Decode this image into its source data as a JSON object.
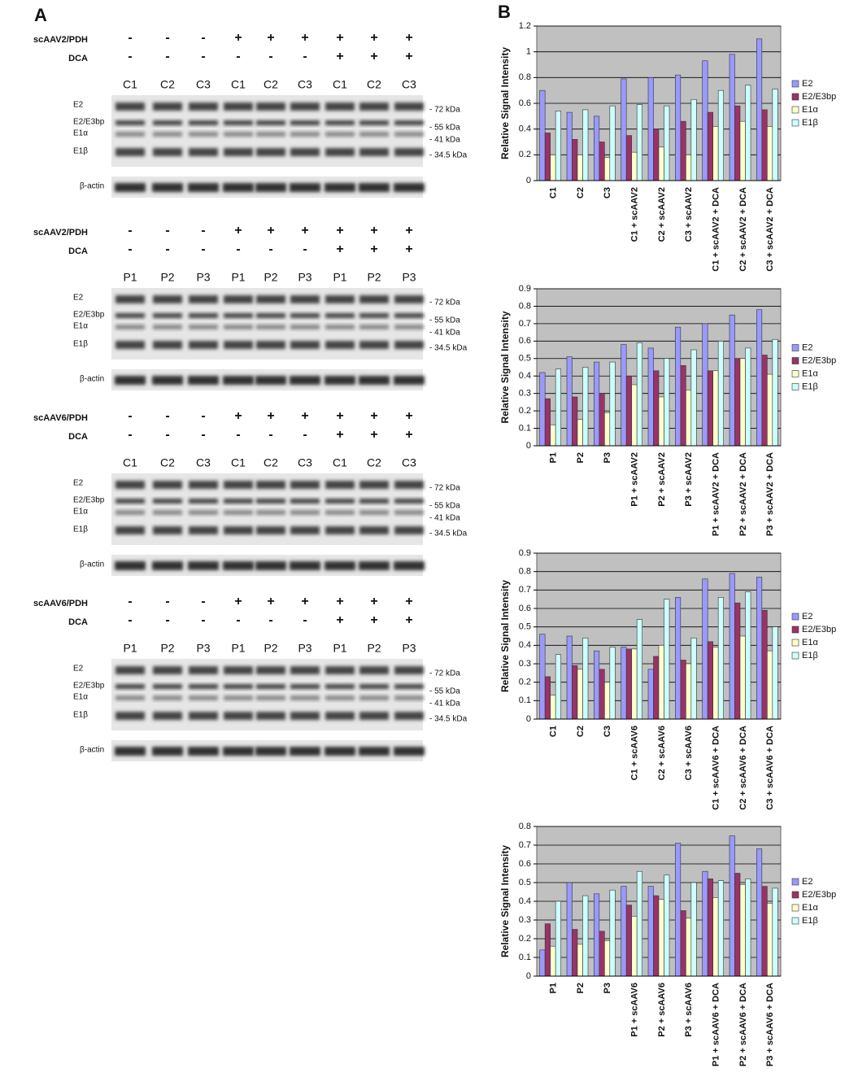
{
  "panel_labels": [
    "A",
    "B"
  ],
  "panel_a": {
    "blots": [
      {
        "treatment": "scAAV2/PDH",
        "treatment_signs": [
          "-",
          "-",
          "-",
          "+",
          "+",
          "+",
          "+",
          "+",
          "+"
        ],
        "dca": "DCA",
        "dca_signs": [
          "-",
          "-",
          "-",
          "-",
          "-",
          "-",
          "+",
          "+",
          "+"
        ],
        "lanes": [
          "C1",
          "C2",
          "C3",
          "C1",
          "C2",
          "C3",
          "C1",
          "C2",
          "C3"
        ],
        "bands": [
          "E2",
          "E2/E3bp",
          "E1α",
          "E1β"
        ],
        "markers": [
          "- 72 kDa",
          "- 55 kDa",
          "- 41 kDa",
          "- 34.5 kDa"
        ],
        "loading": "β-actin"
      },
      {
        "treatment": "scAAV2/PDH",
        "treatment_signs": [
          "-",
          "-",
          "-",
          "+",
          "+",
          "+",
          "+",
          "+",
          "+"
        ],
        "dca": "DCA",
        "dca_signs": [
          "-",
          "-",
          "-",
          "-",
          "-",
          "-",
          "+",
          "+",
          "+"
        ],
        "lanes": [
          "P1",
          "P2",
          "P3",
          "P1",
          "P2",
          "P3",
          "P1",
          "P2",
          "P3"
        ],
        "bands": [
          "E2",
          "E2/E3bp",
          "E1α",
          "E1β"
        ],
        "markers": [
          "- 72 kDa",
          "- 55 kDa",
          "- 41 kDa",
          "- 34.5 kDa"
        ],
        "loading": "β-actin"
      },
      {
        "treatment": "scAAV6/PDH",
        "treatment_signs": [
          "-",
          "-",
          "-",
          "+",
          "+",
          "+",
          "+",
          "+",
          "+"
        ],
        "dca": "DCA",
        "dca_signs": [
          "-",
          "-",
          "-",
          "-",
          "-",
          "-",
          "+",
          "+",
          "+"
        ],
        "lanes": [
          "C1",
          "C2",
          "C3",
          "C1",
          "C2",
          "C3",
          "C1",
          "C2",
          "C3"
        ],
        "bands": [
          "E2",
          "E2/E3bp",
          "E1α",
          "E1β"
        ],
        "markers": [
          "- 72 kDa",
          "- 55 kDa",
          "- 41 kDa",
          "- 34.5 kDa"
        ],
        "loading": "β-actin"
      },
      {
        "treatment": "scAAV6/PDH",
        "treatment_signs": [
          "-",
          "-",
          "-",
          "+",
          "+",
          "+",
          "+",
          "+",
          "+"
        ],
        "dca": "DCA",
        "dca_signs": [
          "-",
          "-",
          "-",
          "-",
          "-",
          "-",
          "+",
          "+",
          "+"
        ],
        "lanes": [
          "P1",
          "P2",
          "P3",
          "P1",
          "P2",
          "P3",
          "P1",
          "P2",
          "P3"
        ],
        "bands": [
          "E2",
          "E2/E3bp",
          "E1α",
          "E1β"
        ],
        "markers": [
          "- 72 kDa",
          "- 55 kDa",
          "- 41 kDa",
          "- 34.5 kDa"
        ],
        "loading": "β-actin"
      }
    ]
  },
  "chart_data": [
    {
      "type": "bar",
      "y_label": "Relative Signal Intensity",
      "plot_background": "#c0c0c0",
      "grid": true,
      "legend": "right",
      "categories": [
        "C1",
        "C2",
        "C3",
        "C1 + scAAV2",
        "C2 + scAAV2",
        "C3 + scAAV2",
        "C1 + scAAV2 + DCA",
        "C2 + scAAV2 + DCA",
        "C3 + scAAV2 + DCA"
      ],
      "ylim": [
        0,
        1.2
      ],
      "yticks": [
        0,
        0.2,
        0.4,
        0.6,
        0.8,
        1,
        1.2
      ],
      "series": [
        {
          "name": "E2",
          "color": "#9999ff",
          "values": [
            0.7,
            0.53,
            0.5,
            0.79,
            0.8,
            0.82,
            0.93,
            0.98,
            1.1
          ]
        },
        {
          "name": "E2/E3bp",
          "color": "#993366",
          "values": [
            0.37,
            0.32,
            0.3,
            0.35,
            0.4,
            0.46,
            0.53,
            0.58,
            0.55
          ]
        },
        {
          "name": "E1α",
          "color": "#ffffcc",
          "values": [
            0.2,
            0.2,
            0.18,
            0.22,
            0.26,
            0.2,
            0.42,
            0.46,
            0.42
          ]
        },
        {
          "name": "E1β",
          "color": "#ccffff",
          "values": [
            0.54,
            0.55,
            0.58,
            0.59,
            0.58,
            0.63,
            0.7,
            0.74,
            0.71
          ]
        }
      ]
    },
    {
      "type": "bar",
      "y_label": "Relative Signal Intensity",
      "plot_background": "#c0c0c0",
      "grid": true,
      "legend": "right",
      "categories": [
        "P1",
        "P2",
        "P3",
        "P1 + scAAV2",
        "P2 + scAAV2",
        "P3 + scAAV2",
        "P1 + scAAV2 + DCA",
        "P2 + scAAV2 + DCA",
        "P3 + scAAV2 + DCA"
      ],
      "ylim": [
        0,
        0.9
      ],
      "yticks": [
        0,
        0.1,
        0.2,
        0.3,
        0.4,
        0.5,
        0.6,
        0.7,
        0.8,
        0.9
      ],
      "series": [
        {
          "name": "E2",
          "color": "#9999ff",
          "values": [
            0.42,
            0.51,
            0.48,
            0.58,
            0.56,
            0.68,
            0.7,
            0.75,
            0.78
          ]
        },
        {
          "name": "E2/E3bp",
          "color": "#993366",
          "values": [
            0.27,
            0.28,
            0.3,
            0.4,
            0.43,
            0.46,
            0.43,
            0.5,
            0.52
          ]
        },
        {
          "name": "E1α",
          "color": "#ffffcc",
          "values": [
            0.12,
            0.15,
            0.19,
            0.35,
            0.28,
            0.32,
            0.43,
            0.5,
            0.41
          ]
        },
        {
          "name": "E1β",
          "color": "#ccffff",
          "values": [
            0.44,
            0.45,
            0.48,
            0.59,
            0.5,
            0.55,
            0.6,
            0.56,
            0.61
          ]
        }
      ]
    },
    {
      "type": "bar",
      "y_label": "Relative Signal Intensity",
      "plot_background": "#c0c0c0",
      "grid": true,
      "legend": "right",
      "categories": [
        "C1",
        "C2",
        "C3",
        "C1 + scAAV6",
        "C2 + scAAV6",
        "C3 + scAAV6",
        "C1 + scAAV6 + DCA",
        "C2 + scAAV6 + DCA",
        "C3 + scAAV6 + DCA"
      ],
      "ylim": [
        0,
        0.9
      ],
      "yticks": [
        0,
        0.1,
        0.2,
        0.3,
        0.4,
        0.5,
        0.6,
        0.7,
        0.8,
        0.9
      ],
      "series": [
        {
          "name": "E2",
          "color": "#9999ff",
          "values": [
            0.46,
            0.45,
            0.37,
            0.39,
            0.27,
            0.66,
            0.76,
            0.79,
            0.77
          ]
        },
        {
          "name": "E2/E3bp",
          "color": "#993366",
          "values": [
            0.23,
            0.29,
            0.27,
            0.38,
            0.34,
            0.32,
            0.42,
            0.63,
            0.59
          ]
        },
        {
          "name": "E1α",
          "color": "#ffffcc",
          "values": [
            0.13,
            0.27,
            0.2,
            0.38,
            0.4,
            0.3,
            0.39,
            0.45,
            0.37
          ]
        },
        {
          "name": "E1β",
          "color": "#ccffff",
          "values": [
            0.35,
            0.44,
            0.39,
            0.54,
            0.65,
            0.44,
            0.66,
            0.69,
            0.5
          ]
        }
      ]
    },
    {
      "type": "bar",
      "y_label": "Relative Signal Intensity",
      "plot_background": "#c0c0c0",
      "grid": true,
      "legend": "right",
      "categories": [
        "P1",
        "P2",
        "P3",
        "P1 + scAAV6",
        "P2 + scAAV6",
        "P3 + scAAV6",
        "P1 + scAAV6 + DCA",
        "P2 + scAAV6 + DCA",
        "P3 + scAAV6 + DCA"
      ],
      "ylim": [
        0,
        0.8
      ],
      "yticks": [
        0,
        0.1,
        0.2,
        0.3,
        0.4,
        0.5,
        0.6,
        0.7,
        0.8
      ],
      "series": [
        {
          "name": "E2",
          "color": "#9999ff",
          "values": [
            0.14,
            0.5,
            0.44,
            0.48,
            0.48,
            0.71,
            0.56,
            0.75,
            0.68
          ]
        },
        {
          "name": "E2/E3bp",
          "color": "#993366",
          "values": [
            0.28,
            0.25,
            0.24,
            0.38,
            0.43,
            0.35,
            0.52,
            0.55,
            0.48
          ]
        },
        {
          "name": "E1α",
          "color": "#ffffcc",
          "values": [
            0.16,
            0.17,
            0.19,
            0.32,
            0.41,
            0.31,
            0.42,
            0.49,
            0.39
          ]
        },
        {
          "name": "E1β",
          "color": "#ccffff",
          "values": [
            0.4,
            0.43,
            0.46,
            0.56,
            0.54,
            0.5,
            0.51,
            0.52,
            0.47
          ]
        }
      ]
    }
  ]
}
